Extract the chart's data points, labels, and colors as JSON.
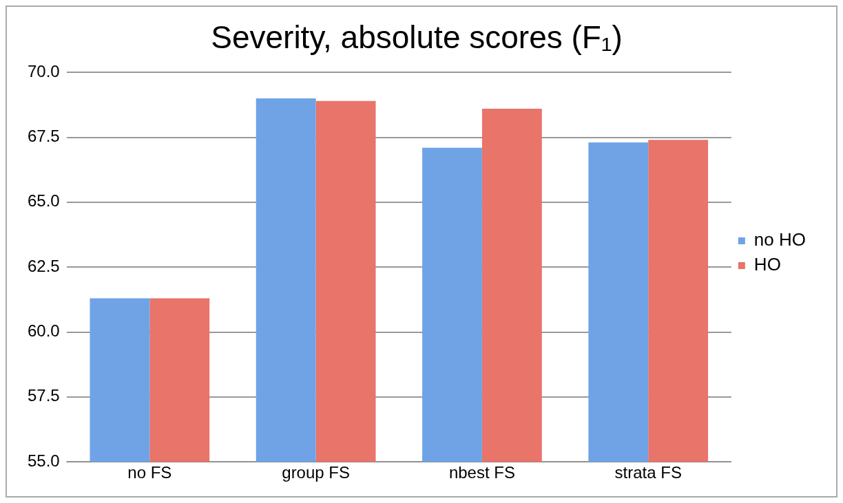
{
  "chart_data": {
    "type": "bar",
    "title": "Severity, absolute scores (F₁)",
    "categories": [
      "no FS",
      "group FS",
      "nbest FS",
      "strata FS"
    ],
    "series": [
      {
        "name": "no HO",
        "color": "#6fa3e6",
        "values": [
          61.3,
          69.0,
          67.1,
          67.3
        ]
      },
      {
        "name": "HO",
        "color": "#e8746a",
        "values": [
          61.3,
          68.9,
          68.6,
          67.4
        ]
      }
    ],
    "ylim": [
      55,
      70
    ],
    "yticks": [
      {
        "value": 55,
        "label": "55.0"
      },
      {
        "value": 57.5,
        "label": "57.5"
      },
      {
        "value": 60,
        "label": "60.0"
      },
      {
        "value": 62.5,
        "label": "62.5"
      },
      {
        "value": 65,
        "label": "65.0"
      },
      {
        "value": 67.5,
        "label": "67.5"
      },
      {
        "value": 70,
        "label": "70.0"
      }
    ],
    "grid": "y",
    "legend": "right"
  }
}
